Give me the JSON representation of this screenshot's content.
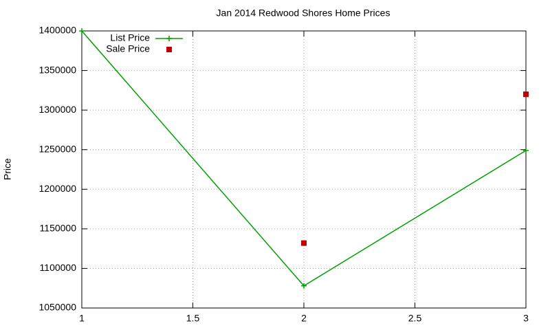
{
  "chart_data": {
    "type": "line",
    "title": "Jan 2014 Redwood Shores Home Prices",
    "y_label": "Price",
    "x": [
      1,
      2,
      3
    ],
    "series": [
      {
        "name": "List Price",
        "color": "#00a000",
        "style": "linespoints",
        "values": [
          1400000,
          1078000,
          1249000
        ]
      },
      {
        "name": "Sale Price",
        "color": "#c00000",
        "style": "points",
        "values": [
          null,
          1132000,
          1320000
        ]
      }
    ],
    "xlim": [
      1,
      3
    ],
    "xticks": [
      1,
      1.5,
      2,
      2.5,
      3
    ],
    "ylim": [
      1050000,
      1400000
    ],
    "yticks": [
      1050000,
      1100000,
      1150000,
      1200000,
      1250000,
      1300000,
      1350000,
      1400000
    ],
    "grid": true,
    "legend": "top-left"
  }
}
